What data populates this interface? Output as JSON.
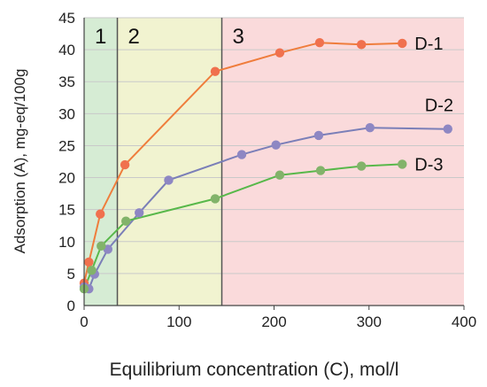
{
  "chart_data": {
    "type": "line",
    "xlabel": "Equilibrium concentration (C), mol/l",
    "ylabel": "Adsorption (A), mg-eq/100g",
    "xlim": [
      0,
      400
    ],
    "ylim": [
      0,
      45
    ],
    "x_ticks": [
      0,
      100,
      200,
      300,
      400
    ],
    "y_ticks": [
      0,
      5,
      10,
      15,
      20,
      25,
      30,
      35,
      40,
      45
    ],
    "grid": "horizontal",
    "regions": [
      {
        "label": "1",
        "x_start": 0,
        "x_end": 35,
        "color": "#d6ecd4"
      },
      {
        "label": "2",
        "x_start": 35,
        "x_end": 145,
        "color": "#f1f3d0"
      },
      {
        "label": "3",
        "x_start": 145,
        "x_end": 400,
        "color": "#fadadb"
      }
    ],
    "series": [
      {
        "name": "D-1",
        "color": "#ef7d3c",
        "marker_color": "#f0714e",
        "x": [
          0,
          5,
          17,
          43,
          138,
          206,
          248,
          292,
          335
        ],
        "y": [
          3.5,
          6.8,
          14.3,
          22.0,
          36.6,
          39.5,
          41.1,
          40.8,
          41.0
        ]
      },
      {
        "name": "D-2",
        "color": "#7b7fb8",
        "marker_color": "#8e87c3",
        "x": [
          0,
          5,
          11,
          25,
          58,
          89,
          166,
          202,
          247,
          301,
          383
        ],
        "y": [
          2.9,
          2.6,
          4.9,
          8.8,
          14.5,
          19.6,
          23.6,
          25.1,
          26.6,
          27.8,
          27.6
        ]
      },
      {
        "name": "D-3",
        "color": "#58b84a",
        "marker_color": "#82b36a",
        "x": [
          0,
          8,
          18,
          44,
          138,
          206,
          249,
          292,
          335
        ],
        "y": [
          2.6,
          5.5,
          9.3,
          13.2,
          16.7,
          20.4,
          21.1,
          21.8,
          22.1
        ]
      }
    ]
  }
}
